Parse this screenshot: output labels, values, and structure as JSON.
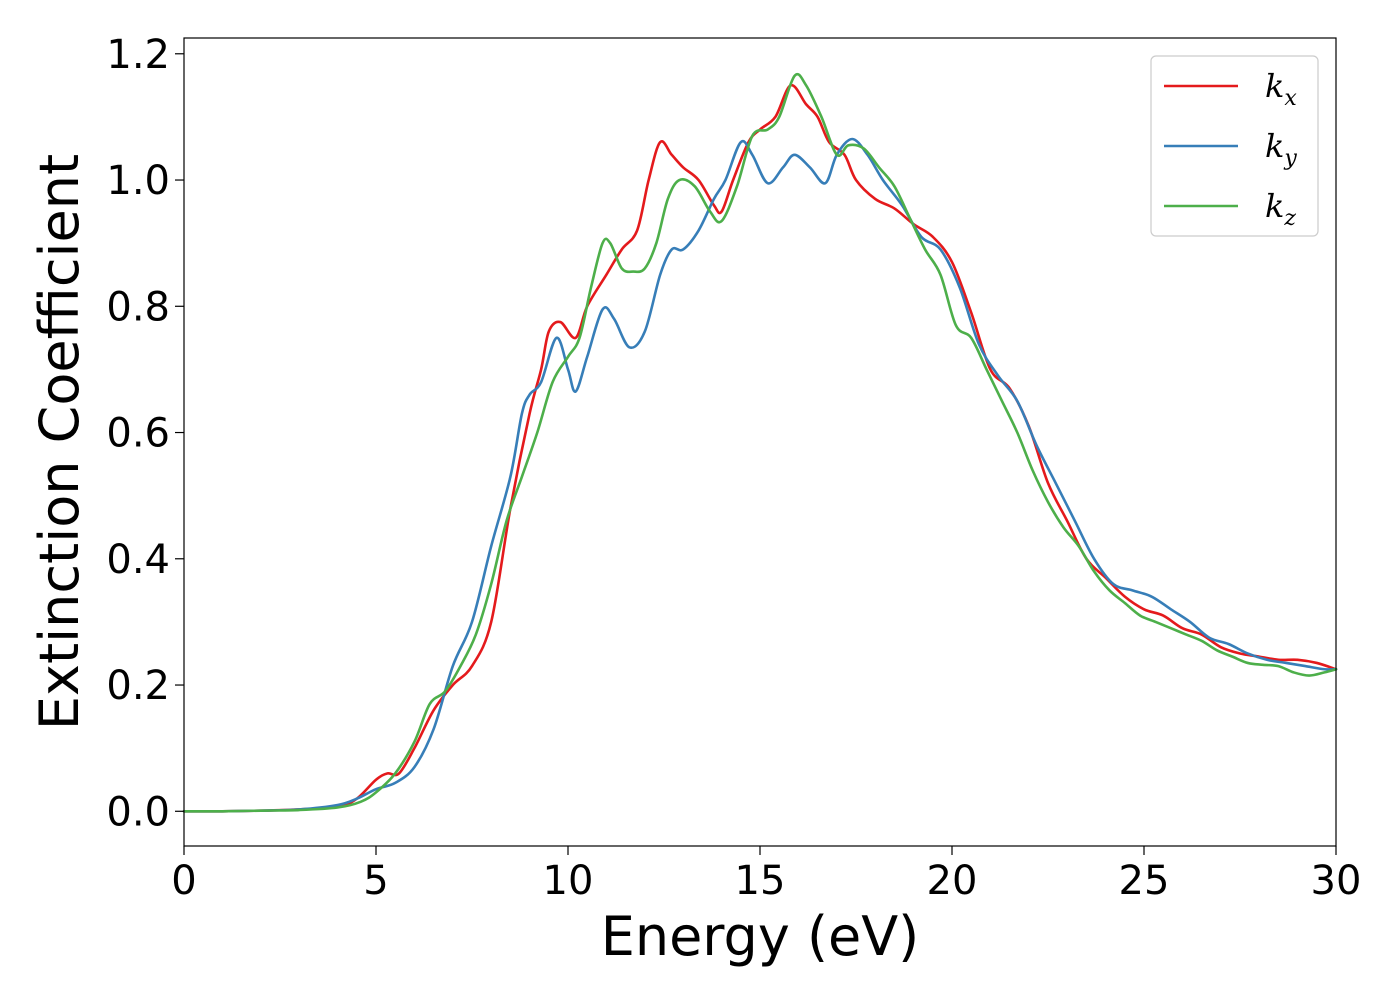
{
  "chart_data": {
    "type": "line",
    "title": "",
    "xlabel": "Energy (eV)",
    "ylabel": "Extinction Coefficient",
    "xlim": [
      0,
      30
    ],
    "ylim": [
      -0.055,
      1.225
    ],
    "xticks": [
      0,
      5,
      10,
      15,
      20,
      25,
      30
    ],
    "xtick_labels": [
      "0",
      "5",
      "10",
      "15",
      "20",
      "25",
      "30"
    ],
    "yticks": [
      0.0,
      0.2,
      0.4,
      0.6,
      0.8,
      1.0,
      1.2
    ],
    "ytick_labels": [
      "0.0",
      "0.2",
      "0.4",
      "0.6",
      "0.8",
      "1.0",
      "1.2"
    ],
    "grid": false,
    "legend_position": "top-right",
    "series": [
      {
        "name": "k_x",
        "legend_base": "k",
        "legend_sub": "x",
        "color": "#e41a1c",
        "points": [
          [
            0,
            0.0
          ],
          [
            1,
            0.0
          ],
          [
            2,
            0.001
          ],
          [
            3,
            0.003
          ],
          [
            4,
            0.007
          ],
          [
            4.5,
            0.02
          ],
          [
            5,
            0.05
          ],
          [
            5.3,
            0.06
          ],
          [
            5.6,
            0.06
          ],
          [
            6,
            0.1
          ],
          [
            6.5,
            0.16
          ],
          [
            7,
            0.2
          ],
          [
            7.5,
            0.23
          ],
          [
            8,
            0.3
          ],
          [
            8.5,
            0.48
          ],
          [
            9,
            0.63
          ],
          [
            9.3,
            0.7
          ],
          [
            9.5,
            0.76
          ],
          [
            9.8,
            0.775
          ],
          [
            10.2,
            0.75
          ],
          [
            10.5,
            0.8
          ],
          [
            11,
            0.85
          ],
          [
            11.4,
            0.89
          ],
          [
            11.8,
            0.92
          ],
          [
            12.1,
            1.0
          ],
          [
            12.4,
            1.06
          ],
          [
            12.7,
            1.04
          ],
          [
            13,
            1.02
          ],
          [
            13.4,
            1.0
          ],
          [
            13.8,
            0.96
          ],
          [
            14,
            0.95
          ],
          [
            14.3,
            1.0
          ],
          [
            14.7,
            1.06
          ],
          [
            15,
            1.08
          ],
          [
            15.4,
            1.1
          ],
          [
            15.8,
            1.15
          ],
          [
            16.2,
            1.12
          ],
          [
            16.5,
            1.1
          ],
          [
            16.8,
            1.06
          ],
          [
            17.2,
            1.04
          ],
          [
            17.5,
            1.0
          ],
          [
            18,
            0.97
          ],
          [
            18.5,
            0.955
          ],
          [
            19,
            0.93
          ],
          [
            19.5,
            0.91
          ],
          [
            20,
            0.87
          ],
          [
            20.5,
            0.79
          ],
          [
            21,
            0.7
          ],
          [
            21.5,
            0.67
          ],
          [
            22,
            0.61
          ],
          [
            22.5,
            0.52
          ],
          [
            23,
            0.46
          ],
          [
            23.5,
            0.4
          ],
          [
            24,
            0.37
          ],
          [
            24.5,
            0.34
          ],
          [
            25,
            0.32
          ],
          [
            25.5,
            0.31
          ],
          [
            26,
            0.29
          ],
          [
            26.5,
            0.28
          ],
          [
            27,
            0.26
          ],
          [
            27.5,
            0.25
          ],
          [
            28,
            0.245
          ],
          [
            28.5,
            0.24
          ],
          [
            29,
            0.24
          ],
          [
            29.5,
            0.235
          ],
          [
            30,
            0.225
          ]
        ]
      },
      {
        "name": "k_y",
        "legend_base": "k",
        "legend_sub": "y",
        "color": "#377eb8",
        "points": [
          [
            0,
            0.0
          ],
          [
            1,
            0.0
          ],
          [
            2,
            0.001
          ],
          [
            3,
            0.003
          ],
          [
            4,
            0.01
          ],
          [
            4.5,
            0.02
          ],
          [
            5,
            0.035
          ],
          [
            5.5,
            0.045
          ],
          [
            6,
            0.07
          ],
          [
            6.5,
            0.13
          ],
          [
            7,
            0.23
          ],
          [
            7.5,
            0.3
          ],
          [
            8,
            0.42
          ],
          [
            8.5,
            0.53
          ],
          [
            8.8,
            0.63
          ],
          [
            9,
            0.66
          ],
          [
            9.3,
            0.68
          ],
          [
            9.7,
            0.75
          ],
          [
            10,
            0.7
          ],
          [
            10.2,
            0.665
          ],
          [
            10.5,
            0.72
          ],
          [
            10.9,
            0.795
          ],
          [
            11.2,
            0.78
          ],
          [
            11.6,
            0.735
          ],
          [
            12,
            0.76
          ],
          [
            12.4,
            0.85
          ],
          [
            12.7,
            0.89
          ],
          [
            13,
            0.89
          ],
          [
            13.4,
            0.92
          ],
          [
            13.8,
            0.97
          ],
          [
            14.1,
            1.0
          ],
          [
            14.5,
            1.06
          ],
          [
            14.8,
            1.04
          ],
          [
            15.2,
            0.995
          ],
          [
            15.6,
            1.02
          ],
          [
            15.9,
            1.04
          ],
          [
            16.3,
            1.02
          ],
          [
            16.7,
            0.995
          ],
          [
            17,
            1.04
          ],
          [
            17.4,
            1.065
          ],
          [
            17.8,
            1.04
          ],
          [
            18.2,
            1.0
          ],
          [
            18.7,
            0.96
          ],
          [
            19.2,
            0.91
          ],
          [
            19.7,
            0.89
          ],
          [
            20.2,
            0.83
          ],
          [
            20.7,
            0.74
          ],
          [
            21.2,
            0.69
          ],
          [
            21.7,
            0.65
          ],
          [
            22.2,
            0.58
          ],
          [
            22.7,
            0.52
          ],
          [
            23.2,
            0.46
          ],
          [
            23.7,
            0.4
          ],
          [
            24.2,
            0.36
          ],
          [
            24.7,
            0.35
          ],
          [
            25.2,
            0.34
          ],
          [
            25.7,
            0.32
          ],
          [
            26.2,
            0.3
          ],
          [
            26.7,
            0.275
          ],
          [
            27.2,
            0.265
          ],
          [
            27.7,
            0.25
          ],
          [
            28.2,
            0.24
          ],
          [
            28.7,
            0.235
          ],
          [
            29.2,
            0.23
          ],
          [
            29.7,
            0.225
          ],
          [
            30,
            0.225
          ]
        ]
      },
      {
        "name": "k_z",
        "legend_base": "k",
        "legend_sub": "z",
        "color": "#4daf4a",
        "points": [
          [
            0,
            0.0
          ],
          [
            1,
            0.0
          ],
          [
            2,
            0.001
          ],
          [
            3,
            0.002
          ],
          [
            4,
            0.006
          ],
          [
            4.6,
            0.015
          ],
          [
            5,
            0.03
          ],
          [
            5.5,
            0.06
          ],
          [
            6,
            0.11
          ],
          [
            6.4,
            0.17
          ],
          [
            6.8,
            0.19
          ],
          [
            7.2,
            0.23
          ],
          [
            7.6,
            0.28
          ],
          [
            8,
            0.36
          ],
          [
            8.4,
            0.46
          ],
          [
            8.8,
            0.53
          ],
          [
            9.2,
            0.6
          ],
          [
            9.6,
            0.68
          ],
          [
            10,
            0.72
          ],
          [
            10.3,
            0.75
          ],
          [
            10.6,
            0.83
          ],
          [
            10.9,
            0.9
          ],
          [
            11.1,
            0.9
          ],
          [
            11.4,
            0.86
          ],
          [
            11.7,
            0.855
          ],
          [
            12,
            0.86
          ],
          [
            12.3,
            0.9
          ],
          [
            12.6,
            0.97
          ],
          [
            12.9,
            1.0
          ],
          [
            13.3,
            0.99
          ],
          [
            13.7,
            0.95
          ],
          [
            14,
            0.935
          ],
          [
            14.4,
            0.99
          ],
          [
            14.8,
            1.07
          ],
          [
            15.2,
            1.08
          ],
          [
            15.5,
            1.1
          ],
          [
            15.9,
            1.165
          ],
          [
            16.2,
            1.15
          ],
          [
            16.6,
            1.1
          ],
          [
            17,
            1.04
          ],
          [
            17.3,
            1.055
          ],
          [
            17.7,
            1.05
          ],
          [
            18.1,
            1.02
          ],
          [
            18.5,
            0.99
          ],
          [
            18.9,
            0.94
          ],
          [
            19.3,
            0.89
          ],
          [
            19.7,
            0.85
          ],
          [
            20.1,
            0.77
          ],
          [
            20.5,
            0.75
          ],
          [
            20.9,
            0.7
          ],
          [
            21.3,
            0.65
          ],
          [
            21.7,
            0.6
          ],
          [
            22.1,
            0.54
          ],
          [
            22.5,
            0.49
          ],
          [
            22.9,
            0.45
          ],
          [
            23.3,
            0.42
          ],
          [
            23.7,
            0.38
          ],
          [
            24.1,
            0.35
          ],
          [
            24.5,
            0.33
          ],
          [
            24.9,
            0.31
          ],
          [
            25.3,
            0.3
          ],
          [
            25.7,
            0.29
          ],
          [
            26.1,
            0.28
          ],
          [
            26.5,
            0.27
          ],
          [
            26.9,
            0.255
          ],
          [
            27.3,
            0.245
          ],
          [
            27.7,
            0.235
          ],
          [
            28.1,
            0.232
          ],
          [
            28.5,
            0.23
          ],
          [
            28.9,
            0.22
          ],
          [
            29.3,
            0.215
          ],
          [
            29.7,
            0.22
          ],
          [
            30,
            0.225
          ]
        ]
      }
    ]
  }
}
